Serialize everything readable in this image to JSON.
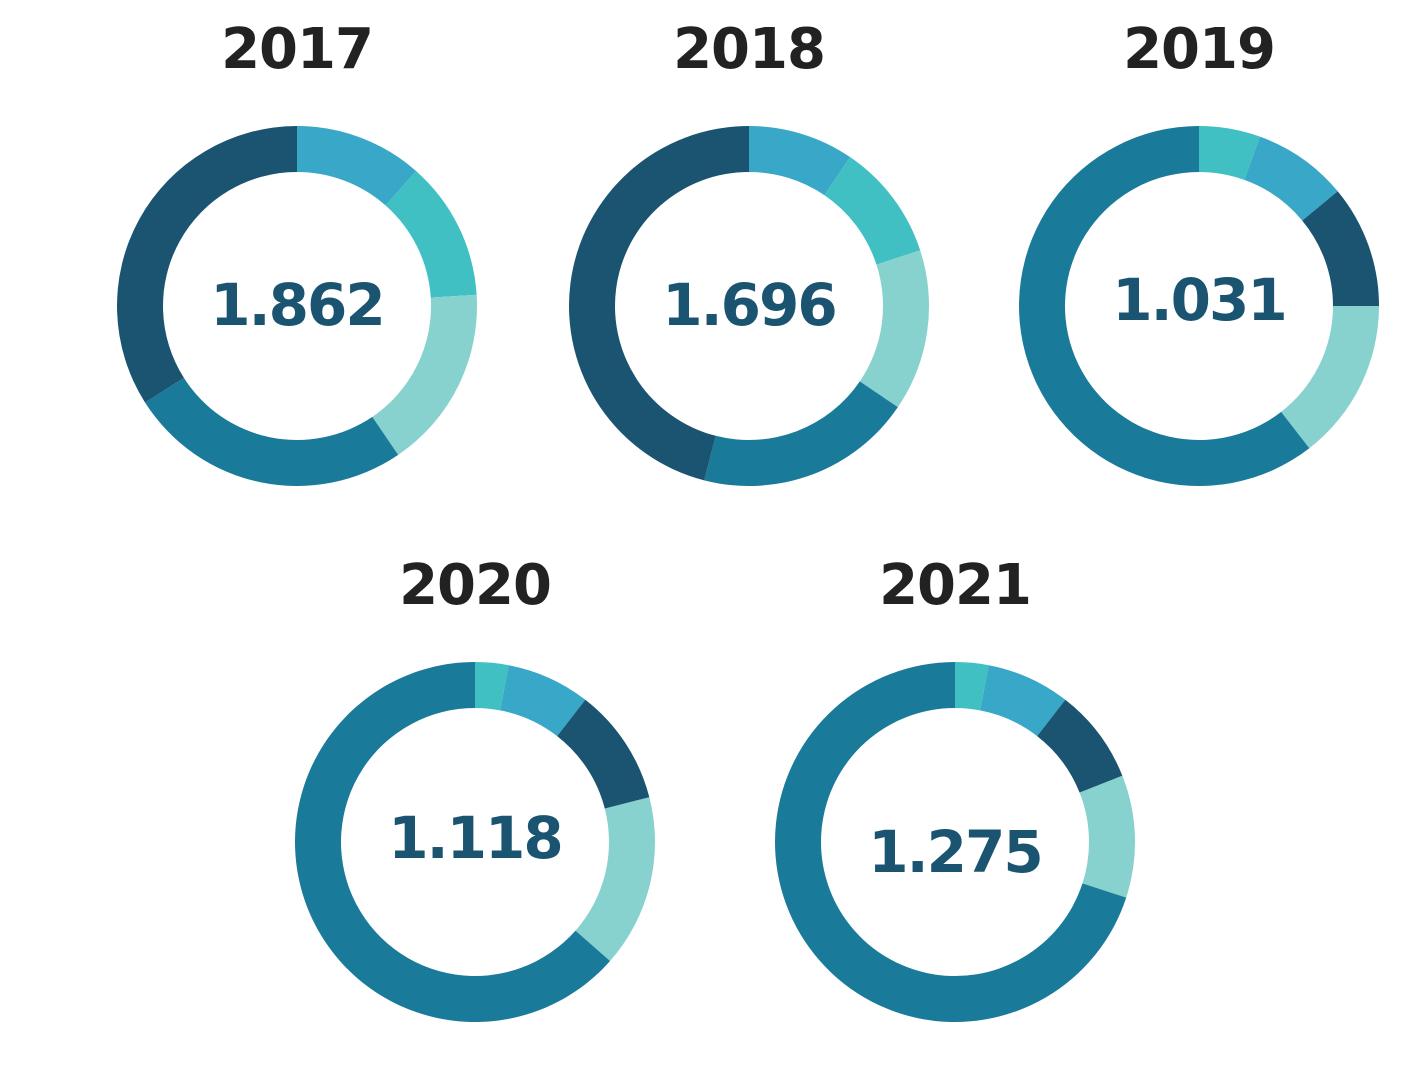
{
  "colors": {
    "navy": "#1b5470",
    "teal_dark": "#1a7a9a",
    "blue": "#39a7c7",
    "cyan": "#41c0c3",
    "mint": "#87d1ce",
    "title": "#222222",
    "total": "#1b5470"
  },
  "chart_data": [
    {
      "type": "pie",
      "title": "2017",
      "total_label": "1.862",
      "slices": [
        {
          "color": "#39a7c7",
          "value": 11.5
        },
        {
          "color": "#41c0c3",
          "value": 12.5
        },
        {
          "color": "#87d1ce",
          "value": 16.5
        },
        {
          "color": "#1a7a9a",
          "value": 25.5
        },
        {
          "color": "#1b5470",
          "value": 34
        }
      ]
    },
    {
      "type": "pie",
      "title": "2018",
      "total_label": "1.696",
      "slices": [
        {
          "color": "#39a7c7",
          "value": 9.5
        },
        {
          "color": "#41c0c3",
          "value": 10.5
        },
        {
          "color": "#87d1ce",
          "value": 14.5
        },
        {
          "color": "#1a7a9a",
          "value": 19.5
        },
        {
          "color": "#1b5470",
          "value": 46
        }
      ]
    },
    {
      "type": "pie",
      "title": "2019",
      "total_label": "1.031",
      "slices": [
        {
          "color": "#41c0c3",
          "value": 5.5
        },
        {
          "color": "#39a7c7",
          "value": 8.5
        },
        {
          "color": "#1b5470",
          "value": 11
        },
        {
          "color": "#87d1ce",
          "value": 14.5
        },
        {
          "color": "#1a7a9a",
          "value": 60.5
        }
      ]
    },
    {
      "type": "pie",
      "title": "2020",
      "total_label": "1.118",
      "slices": [
        {
          "color": "#41c0c3",
          "value": 3
        },
        {
          "color": "#39a7c7",
          "value": 7.5
        },
        {
          "color": "#1b5470",
          "value": 10.5
        },
        {
          "color": "#87d1ce",
          "value": 15.5
        },
        {
          "color": "#1a7a9a",
          "value": 63.5
        }
      ]
    },
    {
      "type": "pie",
      "title": "2021",
      "total_label": "1.275",
      "slices": [
        {
          "color": "#41c0c3",
          "value": 3
        },
        {
          "color": "#39a7c7",
          "value": 7.5
        },
        {
          "color": "#1b5470",
          "value": 8.5
        },
        {
          "color": "#87d1ce",
          "value": 11
        },
        {
          "color": "#1a7a9a",
          "value": 70
        }
      ]
    }
  ]
}
